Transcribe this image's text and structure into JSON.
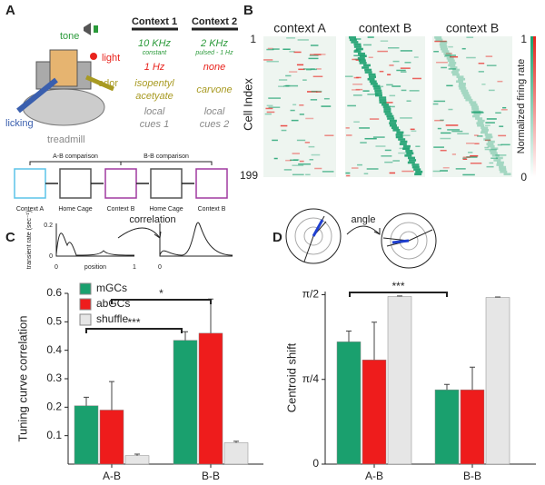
{
  "panel_labels": [
    "A",
    "B",
    "C",
    "D"
  ],
  "panel_a": {
    "cues": [
      "tone",
      "light",
      "odor",
      "licking",
      "treadmill"
    ],
    "header": [
      "Context 1",
      "Context 2"
    ],
    "rows": [
      [
        [
          "10 KHz",
          "constant"
        ],
        [
          "2 KHz",
          "pulsed - 1 Hz"
        ]
      ],
      [
        [
          "1 Hz"
        ],
        [
          "none"
        ]
      ],
      [
        [
          "isopentyl",
          "acetyate"
        ],
        [
          "carvone"
        ]
      ],
      [
        [
          "local",
          "cues 1"
        ],
        [
          "local",
          "cues 2"
        ]
      ]
    ],
    "comparisons": [
      "A-B comparison",
      "B-B comparison"
    ],
    "cages": [
      "Context A",
      "Home Cage",
      "Context B",
      "Home Cage",
      "Context B"
    ]
  },
  "panel_b": {
    "titles": [
      "context A",
      "context B",
      "context B"
    ],
    "ylabel": "Cell Index",
    "yticks": [
      1,
      199
    ],
    "colorbar_label": "Normalized firing rate",
    "colorbar_ticks": [
      1,
      0
    ]
  },
  "panel_c_inset": {
    "title": "correlation",
    "ylabel": "transient rate (sec⁻¹)",
    "yticks": [
      0,
      0.2
    ],
    "xlabel": "position",
    "xticks": [
      0,
      1
    ]
  },
  "panel_d_inset": {
    "title": "angle"
  },
  "chart_data": [
    {
      "type": "bar",
      "ylabel": "Tuning curve correlation",
      "categories": [
        "A-B",
        "B-B"
      ],
      "series": [
        {
          "name": "mGCs",
          "color": "#1aa06e",
          "values": [
            0.205,
            0.435
          ],
          "errors": [
            0.03,
            0.03
          ]
        },
        {
          "name": "abGCs",
          "color": "#ee1c1c",
          "values": [
            0.19,
            0.46
          ],
          "errors": [
            0.1,
            0.12
          ]
        },
        {
          "name": "shuffle",
          "color": "#e6e6e6",
          "values": [
            0.03,
            0.075
          ],
          "errors": [
            0.005,
            0.005
          ]
        }
      ],
      "ylim": [
        0,
        0.6
      ],
      "yticks": [
        0.1,
        0.2,
        0.3,
        0.4,
        0.5,
        0.6
      ],
      "legend": "upper left",
      "annotations": [
        "***",
        "*"
      ]
    },
    {
      "type": "bar",
      "ylabel": "Centroid shift",
      "categories": [
        "A-B",
        "B-B"
      ],
      "series": [
        {
          "color": "#1aa06e",
          "values": [
            1.134,
            0.689
          ],
          "errors": [
            0.1,
            0.05
          ]
        },
        {
          "color": "#ee1c1c",
          "values": [
            0.966,
            0.689
          ],
          "errors": [
            0.35,
            0.21
          ]
        },
        {
          "color": "#e6e6e6",
          "values": [
            1.554,
            1.545
          ],
          "errors": [
            0.005,
            0.005
          ]
        }
      ],
      "ylim": [
        0,
        1.6
      ],
      "yticks": [
        0,
        {
          "value": 0.7854,
          "label": "π/4"
        },
        {
          "value": 1.5708,
          "label": "π/2"
        }
      ],
      "annotations": [
        "***"
      ]
    }
  ]
}
